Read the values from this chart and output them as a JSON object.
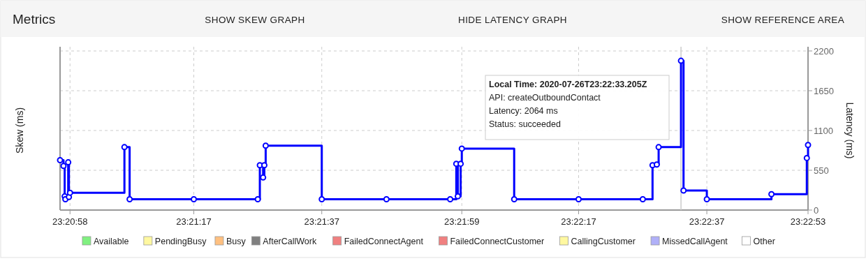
{
  "chart_data": {
    "type": "step",
    "title": "Metrics",
    "ylabel": "Skew (ms)",
    "y2label": "Latency (ms)",
    "annotations": [
      "SHOW SKEW GRAPH",
      "HIDE LATENCY GRAPH",
      "SHOW REFERENCE AREA",
      "Local Time: 2020-07-26T23:22:33.205Z\nAPI: createOutboundContact\nLatency: 2064 ms\nStatus: succeeded"
    ],
    "x": [
      "2020-07-26T23:20:56.450",
      "2020-07-26T23:20:56.990",
      "2020-07-26T23:20:57.170",
      "2020-07-26T23:20:57.280",
      "2020-07-26T23:20:57.720",
      "2020-07-26T23:20:57.830",
      "2020-07-26T23:20:58.000",
      "2020-07-26T23:21:06.480",
      "2020-07-26T23:21:07.290",
      "2020-07-26T23:21:17.290",
      "2020-07-26T23:21:27.260",
      "2020-07-26T23:21:27.580",
      "2020-07-26T23:21:28.090",
      "2020-07-26T23:21:28.280",
      "2020-07-26T23:21:28.490",
      "2020-07-26T23:21:37.230",
      "2020-07-26T23:21:47.310",
      "2020-07-26T23:21:57.240",
      "2020-07-26T23:21:58.190",
      "2020-07-26T23:21:58.430",
      "2020-07-26T23:21:58.870",
      "2020-07-26T23:21:59.050",
      "2020-07-26T23:22:07.210",
      "2020-07-26T23:22:17.250",
      "2020-07-26T23:22:27.250",
      "2020-07-26T23:22:28.770",
      "2020-07-26T23:22:29.430",
      "2020-07-26T23:22:29.720",
      "2020-07-26T23:22:33.205",
      "2020-07-26T23:22:33.600",
      "2020-07-26T23:22:37.230",
      "2020-07-26T23:22:47.300",
      "2020-07-26T23:22:52.810",
      "2020-07-26T23:22:53.000"
    ],
    "series": [
      {
        "axis": "y2",
        "color": "#0000ff",
        "values": [
          690,
          610,
          190,
          150,
          660,
          180,
          240,
          870,
          150,
          150,
          150,
          620,
          450,
          620,
          890,
          150,
          150,
          150,
          640,
          190,
          640,
          850,
          150,
          150,
          150,
          620,
          630,
          870,
          2064,
          270,
          150,
          220,
          720,
          900
        ]
      },
      {
        "type": "area",
        "name": "Available",
        "color": "#80f080",
        "values": [
          null,
          null,
          null,
          null,
          null,
          null,
          null,
          null,
          null,
          null,
          null,
          null,
          null,
          null,
          null,
          null,
          null,
          null,
          null,
          null,
          null,
          null,
          null,
          null,
          null,
          null,
          null,
          null,
          null,
          null,
          null,
          null,
          null,
          null
        ]
      },
      {
        "type": "area",
        "name": "PendingBusy",
        "color": "#fff8a0",
        "values": [
          null,
          null,
          null,
          null,
          null,
          null,
          null,
          null,
          null,
          null,
          null,
          null,
          null,
          null,
          null,
          null,
          null,
          null,
          null,
          null,
          null,
          null,
          null,
          null,
          null,
          null,
          null,
          null,
          null,
          null,
          null,
          null,
          null,
          null
        ]
      },
      {
        "type": "area",
        "name": "Busy",
        "color": "#ffc080",
        "values": [
          null,
          null,
          null,
          null,
          null,
          null,
          null,
          null,
          null,
          null,
          null,
          null,
          null,
          null,
          null,
          null,
          null,
          null,
          null,
          null,
          null,
          null,
          null,
          null,
          null,
          null,
          null,
          null,
          null,
          null,
          null,
          null,
          null,
          null
        ]
      },
      {
        "type": "area",
        "name": "AfterCallWork",
        "color": "#808080",
        "values": [
          null,
          null,
          null,
          null,
          null,
          null,
          null,
          null,
          null,
          null,
          null,
          null,
          null,
          null,
          null,
          null,
          null,
          null,
          null,
          null,
          null,
          null,
          null,
          null,
          null,
          null,
          null,
          null,
          null,
          null,
          null,
          null,
          null,
          null
        ]
      },
      {
        "type": "area",
        "name": "FailedConnectAgent",
        "color": "#f08080",
        "values": [
          null,
          null,
          null,
          null,
          null,
          null,
          null,
          null,
          null,
          null,
          null,
          null,
          null,
          null,
          null,
          null,
          null,
          null,
          null,
          null,
          null,
          null,
          null,
          null,
          null,
          null,
          null,
          null,
          null,
          null,
          null,
          null,
          null,
          null
        ]
      },
      {
        "type": "area",
        "name": "FailedConnectCustomer",
        "color": "#f08080",
        "values": [
          null,
          null,
          null,
          null,
          null,
          null,
          null,
          null,
          null,
          null,
          null,
          null,
          null,
          null,
          null,
          null,
          null,
          null,
          null,
          null,
          null,
          null,
          null,
          null,
          null,
          null,
          null,
          null,
          null,
          null,
          null,
          null,
          null,
          null
        ]
      },
      {
        "type": "area",
        "name": "CallingCustomer",
        "color": "#fff8a0",
        "values": [
          null,
          null,
          null,
          null,
          null,
          null,
          null,
          null,
          null,
          null,
          null,
          null,
          null,
          null,
          null,
          null,
          null,
          null,
          null,
          null,
          null,
          null,
          null,
          null,
          null,
          null,
          null,
          null,
          null,
          null,
          null,
          null,
          null,
          null
        ]
      },
      {
        "type": "area",
        "name": "MissedCallAgent",
        "color": "#b0b0f8",
        "values": [
          null,
          null,
          null,
          null,
          null,
          null,
          null,
          null,
          null,
          null,
          null,
          null,
          null,
          null,
          null,
          null,
          null,
          null,
          null,
          null,
          null,
          null,
          null,
          null,
          null,
          null,
          null,
          null,
          null,
          null,
          null,
          null,
          null,
          null
        ]
      },
      {
        "type": "area",
        "name": "Other",
        "color": "#ffffff",
        "values": [
          null,
          null,
          null,
          null,
          null,
          null,
          null,
          null,
          null,
          null,
          null,
          null,
          null,
          null,
          null,
          null,
          null,
          null,
          null,
          null,
          null,
          null,
          null,
          null,
          null,
          null,
          null,
          null,
          null,
          null,
          null,
          null,
          null,
          null
        ]
      }
    ],
    "xlim": [
      "2020-07-26T23:20:56.450",
      "2020-07-26T23:22:53.000"
    ],
    "xticks": [
      {
        "value": "2020-07-26T23:20:58.000",
        "label": "23:20:58"
      },
      {
        "value": "2020-07-26T23:21:17.290",
        "label": "23:21:17"
      },
      {
        "value": "2020-07-26T23:21:37.230",
        "label": "23:21:37"
      },
      {
        "value": "2020-07-26T23:21:59.050",
        "label": "23:21:59"
      },
      {
        "value": "2020-07-26T23:22:17.250",
        "label": "23:22:17"
      },
      {
        "value": "2020-07-26T23:22:37.230",
        "label": "23:22:37"
      },
      {
        "value": "2020-07-26T23:22:53.000",
        "label": "23:22:53"
      }
    ],
    "y2lim": [
      0,
      2200
    ],
    "y2ticks": [
      0,
      550,
      1100,
      1650,
      2200
    ],
    "ref_lines": [
      {
        "axis": "x",
        "value": "2020-07-26T23:22:33.205",
        "color": "#cccccc"
      }
    ],
    "grid": true,
    "legend": "bottom",
    "marker": "circle",
    "line_style": "solid"
  }
}
